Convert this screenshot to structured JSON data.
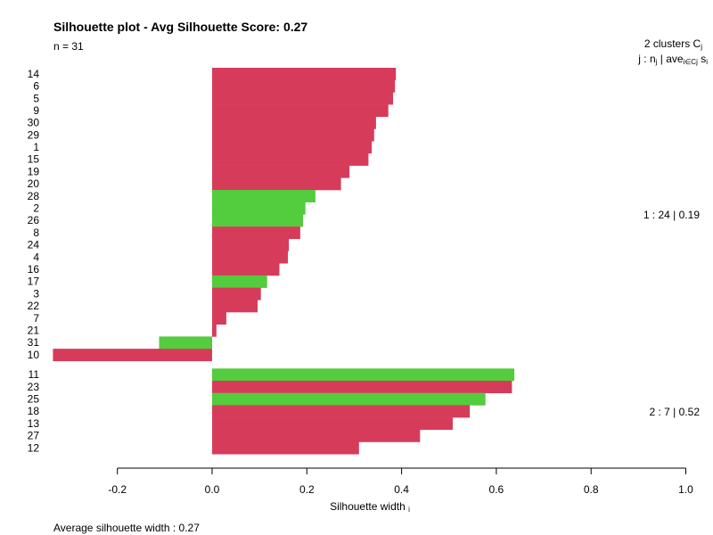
{
  "chart_data": {
    "type": "bar",
    "orientation": "horizontal",
    "title": "Silhouette plot - Avg Silhouette Score: 0.27",
    "subtitle": "n = 31",
    "xlabel": "Silhouette width",
    "xlabel_sub": "i",
    "xlim": [
      -0.35,
      1.0
    ],
    "xticks": [
      "-0.2",
      "0.0",
      "0.2",
      "0.4",
      "0.6",
      "0.8",
      "1.0"
    ],
    "xtick_values": [
      -0.2,
      0.0,
      0.2,
      0.4,
      0.6,
      0.8,
      1.0
    ],
    "legend_header": {
      "line1": "2  clusters  C",
      "line1_sub": "j",
      "line2": "j :  n",
      "line2_sub": "j",
      "line2_mid": " | ave",
      "line2_sub2": "i∈Cj",
      "line2_end": "  s",
      "line2_end_sub": "i"
    },
    "colors": {
      "red": "#d63c5a",
      "green": "#53cc3e"
    },
    "clusters": [
      {
        "label": "1 :   24  |  0.19",
        "bars": [
          {
            "id": "14",
            "value": 0.388,
            "color": "red"
          },
          {
            "id": "6",
            "value": 0.386,
            "color": "red"
          },
          {
            "id": "5",
            "value": 0.382,
            "color": "red"
          },
          {
            "id": "9",
            "value": 0.372,
            "color": "red"
          },
          {
            "id": "30",
            "value": 0.346,
            "color": "red"
          },
          {
            "id": "29",
            "value": 0.342,
            "color": "red"
          },
          {
            "id": "1",
            "value": 0.337,
            "color": "red"
          },
          {
            "id": "15",
            "value": 0.33,
            "color": "red"
          },
          {
            "id": "19",
            "value": 0.29,
            "color": "red"
          },
          {
            "id": "20",
            "value": 0.272,
            "color": "red"
          },
          {
            "id": "28",
            "value": 0.218,
            "color": "green"
          },
          {
            "id": "2",
            "value": 0.197,
            "color": "green"
          },
          {
            "id": "26",
            "value": 0.192,
            "color": "green"
          },
          {
            "id": "8",
            "value": 0.186,
            "color": "red"
          },
          {
            "id": "24",
            "value": 0.162,
            "color": "red"
          },
          {
            "id": "4",
            "value": 0.16,
            "color": "red"
          },
          {
            "id": "16",
            "value": 0.142,
            "color": "red"
          },
          {
            "id": "17",
            "value": 0.116,
            "color": "green"
          },
          {
            "id": "3",
            "value": 0.103,
            "color": "red"
          },
          {
            "id": "22",
            "value": 0.096,
            "color": "red"
          },
          {
            "id": "7",
            "value": 0.03,
            "color": "red"
          },
          {
            "id": "21",
            "value": 0.009,
            "color": "red"
          },
          {
            "id": "31",
            "value": -0.112,
            "color": "green"
          },
          {
            "id": "10",
            "value": -0.336,
            "color": "red"
          }
        ]
      },
      {
        "label": "2 :   7  |  0.52",
        "bars": [
          {
            "id": "11",
            "value": 0.638,
            "color": "green"
          },
          {
            "id": "23",
            "value": 0.633,
            "color": "red"
          },
          {
            "id": "25",
            "value": 0.577,
            "color": "green"
          },
          {
            "id": "18",
            "value": 0.544,
            "color": "red"
          },
          {
            "id": "13",
            "value": 0.508,
            "color": "red"
          },
          {
            "id": "27",
            "value": 0.439,
            "color": "red"
          },
          {
            "id": "12",
            "value": 0.31,
            "color": "red"
          }
        ]
      }
    ],
    "footer": "Average silhouette width :  0.27"
  }
}
